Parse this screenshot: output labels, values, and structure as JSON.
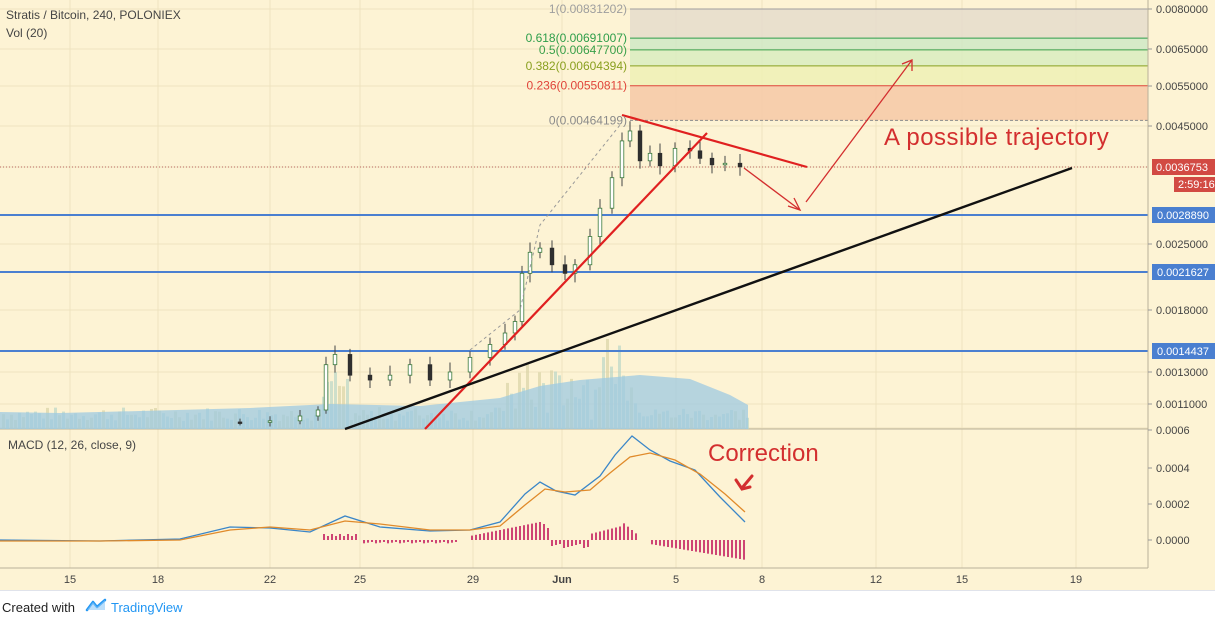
{
  "header": {
    "symbol_line": "Stratis / Bitcoin, 240, POLONIEX",
    "volume_line": "Vol (20)"
  },
  "macd_label": "MACD (12, 26, close, 9)",
  "annotations": {
    "trajectory": "A possible trajectory",
    "correction": "Correction"
  },
  "footer": {
    "created_with": "Created with",
    "brand": "TradingView"
  },
  "colors": {
    "background": "#fdf3d4",
    "horizontal_levels": "#4a7fd0",
    "trendline_red": "#e02020",
    "trendline_black": "#111111",
    "annotation_red": "#d32f2f",
    "candle": "#3b7a3b",
    "macd_line": "#3a86c8",
    "signal_line": "#e08a2a",
    "histogram": "#c2185b",
    "volume_area": "#9ec9e2",
    "last_price_badge": "#d24a43"
  },
  "price_axis": {
    "ticks": [
      "0.0080000",
      "0.0065000",
      "0.0055000",
      "0.0045000",
      "0.0025000",
      "0.0018000",
      "0.0013000",
      "0.0011000"
    ],
    "last_price": "0.0036753",
    "countdown": "2:59:16",
    "level_labels": [
      "0.0028890",
      "0.0021627",
      "0.0014437"
    ]
  },
  "macd_axis": {
    "ticks": [
      "0.0006",
      "0.0004",
      "0.0002",
      "0.0000"
    ]
  },
  "time_axis": {
    "ticks": [
      "15",
      "18",
      "22",
      "25",
      "29",
      "Jun",
      "5",
      "8",
      "12",
      "15",
      "19"
    ]
  },
  "fibonacci": [
    {
      "label": "1(0.00831202)",
      "color": "#9e9e9e"
    },
    {
      "label": "0.618(0.00691007)",
      "color": "#2e9e4a"
    },
    {
      "label": "0.5(0.00647700)",
      "color": "#3aa04a"
    },
    {
      "label": "0.382(0.00604394)",
      "color": "#8aa020"
    },
    {
      "label": "0.236(0.00550811)",
      "color": "#e0443a"
    },
    {
      "label": "0(0.00464199)",
      "color": "#8a8a8a"
    }
  ],
  "chart_data": {
    "type": "line",
    "title": "Stratis / Bitcoin, 240, POLONIEX",
    "horizontal_levels": [
      0.002889,
      0.0021627,
      0.0014437
    ],
    "last_price": 0.0036753,
    "fib_levels": [
      0.00831202,
      0.00691007,
      0.006477,
      0.00604394,
      0.00550811,
      0.00464199
    ]
  }
}
